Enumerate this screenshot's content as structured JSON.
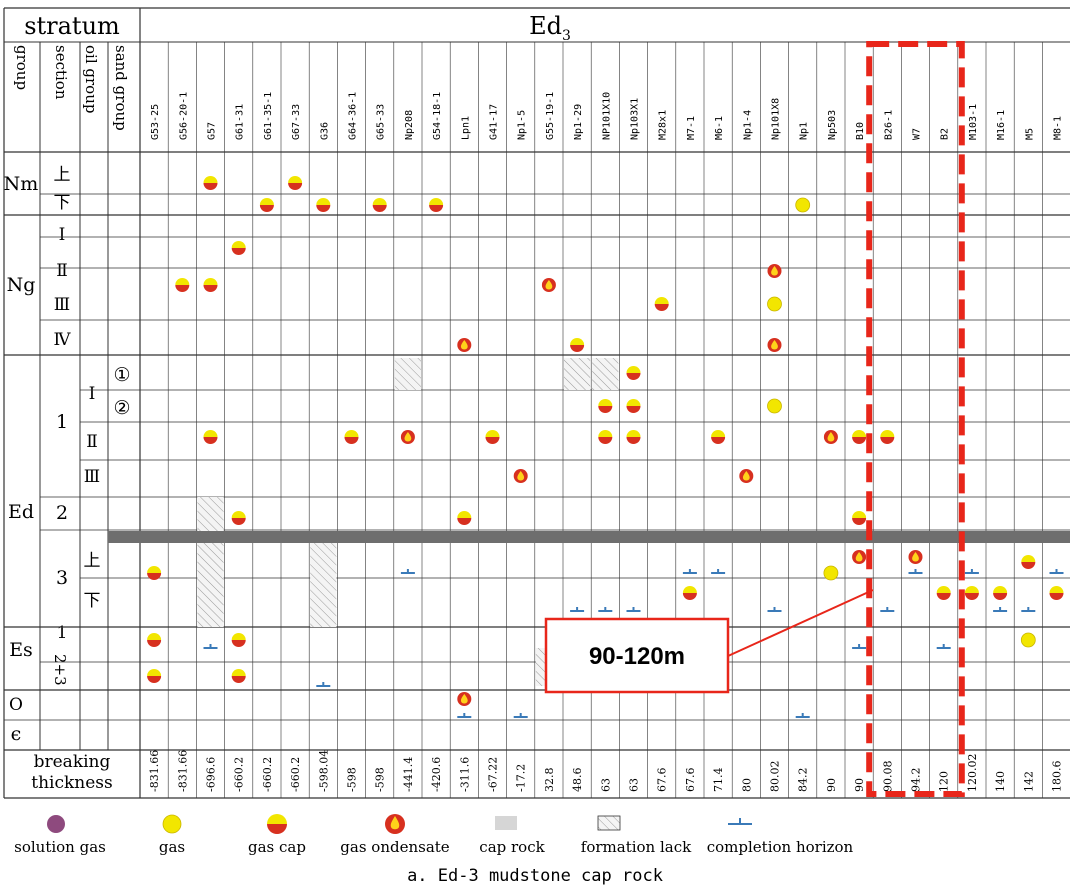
{
  "header": {
    "stratum_label": "stratum",
    "formation_label": "Ed",
    "formation_sub": "3",
    "group_label": "group",
    "section_label": "section",
    "oil_group_label": "oil group",
    "sand_group_label": "sand group"
  },
  "wells": [
    "G53-25",
    "G56-20-1",
    "G57",
    "G61-31",
    "G61-35-1",
    "G67-33",
    "G36",
    "G64-36-1",
    "G65-33",
    "Np208",
    "G54-18-1",
    "Lpn1",
    "G41-17",
    "Np1-5",
    "G55-19-1",
    "Np1-29",
    "NP101X10",
    "Np103X1",
    "M28x1",
    "M7-1",
    "M6-1",
    "Np1-4",
    "Np101X8",
    "Np1",
    "Np503",
    "B10",
    "B26-1",
    "W7",
    "B2",
    "M103-1",
    "M16-1",
    "M5",
    "M8-1"
  ],
  "thickness": [
    "-831.66",
    "-831.66",
    "-696.6",
    "-660.2",
    "-660.2",
    "-660.2",
    "-598.04",
    "-598",
    "-598",
    "-441.4",
    "-420.6",
    "-311.6",
    "-67.22",
    "-17.2",
    "32.8",
    "48.6",
    "63",
    "63",
    "67.6",
    "67.6",
    "71.4",
    "80",
    "80.02",
    "84.2",
    "90",
    "90",
    "90.08",
    "94.2",
    "120",
    "120.02",
    "140",
    "142",
    "180.6"
  ],
  "strat_rows": {
    "nm": "Nm",
    "nm_upper": "上",
    "nm_lower": "下",
    "ng": "Ng",
    "ng_1": "Ⅰ",
    "ng_2": "Ⅱ",
    "ng_3": "Ⅲ",
    "ng_4": "Ⅳ",
    "ed": "Ed",
    "ed_sec1": "1",
    "ed_sec2": "2",
    "ed_sec3": "3",
    "ed_og1": "Ⅰ",
    "ed_og2": "Ⅱ",
    "ed_og3": "Ⅲ",
    "sand1": "①",
    "sand2": "②",
    "ed3_upper": "上",
    "ed3_lower": "下",
    "es": "Es",
    "es_1": "1",
    "es_23": "2+3",
    "o": "O",
    "cambrian": "ϵ"
  },
  "footer_label_line1": "breaking",
  "footer_label_line2": "thickness",
  "callout": "90-120m",
  "legend": {
    "solution_gas": "solution gas",
    "gas": "gas",
    "gas_cap": "gas cap",
    "gas_condensate": "gas ondensate",
    "cap_rock": "cap rock",
    "formation_lack": "formation lack",
    "completion_horizon": "completion horizon"
  },
  "caption": "a. Ed-3 mudstone cap rock",
  "colors": {
    "gas_yellow": "#f2e600",
    "gas_cap_red": "#d7301f",
    "condensate_red": "#d7301f",
    "solution_gas_purple": "#8e4a7e",
    "cap_rock_gray": "#6e6e6e",
    "completion_blue": "#3a7ab8",
    "highlight_red": "#e8261a"
  },
  "symbols": [
    {
      "well": "G57",
      "row": "nm_upper",
      "type": "gascap"
    },
    {
      "well": "G67-33",
      "row": "nm_upper",
      "type": "gascap"
    },
    {
      "well": "G61-35-1",
      "row": "nm_lower",
      "type": "gascap"
    },
    {
      "well": "G36",
      "row": "nm_lower",
      "type": "gascap"
    },
    {
      "well": "G65-33",
      "row": "nm_lower",
      "type": "gascap"
    },
    {
      "well": "G54-18-1",
      "row": "nm_lower",
      "type": "gascap"
    },
    {
      "well": "Np1",
      "row": "nm_lower",
      "type": "gas"
    },
    {
      "well": "G61-31",
      "row": "ng_1b",
      "type": "gascap"
    },
    {
      "well": "G56-20-1",
      "row": "ng_2b",
      "type": "gascap"
    },
    {
      "well": "G57",
      "row": "ng_2b",
      "type": "gascap"
    },
    {
      "well": "G55-19-1",
      "row": "ng_2b",
      "type": "condensate"
    },
    {
      "well": "Np101X8",
      "row": "ng_2",
      "type": "condensate"
    },
    {
      "well": "Np101X8",
      "row": "ng_3",
      "type": "gas"
    },
    {
      "well": "M28x1",
      "row": "ng_3",
      "type": "gascap"
    },
    {
      "well": "Lpn1",
      "row": "ng_4",
      "type": "condensate"
    },
    {
      "well": "Np1-29",
      "row": "ng_4",
      "type": "gascap"
    },
    {
      "well": "Np101X8",
      "row": "ng_4",
      "type": "condensate"
    },
    {
      "well": "Np103X1",
      "row": "sand1",
      "type": "gascap"
    },
    {
      "well": "NP101X10",
      "row": "sand2",
      "type": "gascap"
    },
    {
      "well": "Np103X1",
      "row": "sand2",
      "type": "gascap"
    },
    {
      "well": "Np101X8",
      "row": "sand2",
      "type": "gas"
    },
    {
      "well": "G57",
      "row": "og2",
      "type": "gascap"
    },
    {
      "well": "G64-36-1",
      "row": "og2",
      "type": "gascap"
    },
    {
      "well": "Np208",
      "row": "og2",
      "type": "condensate"
    },
    {
      "well": "G41-17",
      "row": "og2",
      "type": "gascap"
    },
    {
      "well": "NP101X10",
      "row": "og2",
      "type": "gascap"
    },
    {
      "well": "Np103X1",
      "row": "og2",
      "type": "gascap"
    },
    {
      "well": "M6-1",
      "row": "og2",
      "type": "gascap"
    },
    {
      "well": "Np503",
      "row": "og2",
      "type": "condensate"
    },
    {
      "well": "B10",
      "row": "og2",
      "type": "gascap"
    },
    {
      "well": "B26-1",
      "row": "og2",
      "type": "gascap"
    },
    {
      "well": "Np1-5",
      "row": "og3",
      "type": "condensate"
    },
    {
      "well": "Np1-4",
      "row": "og3",
      "type": "condensate"
    },
    {
      "well": "G61-31",
      "row": "sec2",
      "type": "gascap"
    },
    {
      "well": "Lpn1",
      "row": "sec2",
      "type": "gascap"
    },
    {
      "well": "B10",
      "row": "sec2",
      "type": "gascap"
    },
    {
      "well": "B10",
      "row": "ed3u",
      "type": "condensate"
    },
    {
      "well": "W7",
      "row": "ed3u",
      "type": "condensate"
    },
    {
      "well": "G53-25",
      "row": "ed3m",
      "type": "gascap"
    },
    {
      "well": "Np503",
      "row": "ed3m",
      "type": "gas"
    },
    {
      "well": "M5",
      "row": "ed3u2",
      "type": "gascap"
    },
    {
      "well": "M7-1",
      "row": "ed3l",
      "type": "gascap"
    },
    {
      "well": "B2",
      "row": "ed3l",
      "type": "gascap"
    },
    {
      "well": "M103-1",
      "row": "ed3l",
      "type": "gascap"
    },
    {
      "well": "M16-1",
      "row": "ed3l",
      "type": "gascap"
    },
    {
      "well": "M8-1",
      "row": "ed3l",
      "type": "gascap"
    },
    {
      "well": "G53-25",
      "row": "es1",
      "type": "gascap"
    },
    {
      "well": "G61-31",
      "row": "es1",
      "type": "gascap"
    },
    {
      "well": "M5",
      "row": "es1",
      "type": "gas"
    },
    {
      "well": "G53-25",
      "row": "es23",
      "type": "gascap"
    },
    {
      "well": "G61-31",
      "row": "es23",
      "type": "gascap"
    },
    {
      "well": "Lpn1",
      "row": "o",
      "type": "condensate"
    }
  ],
  "completions": [
    {
      "well": "Np208",
      "row": "ed3m"
    },
    {
      "well": "M7-1",
      "row": "ed3m"
    },
    {
      "well": "M6-1",
      "row": "ed3m"
    },
    {
      "well": "W7",
      "row": "ed3m"
    },
    {
      "well": "M103-1",
      "row": "ed3m"
    },
    {
      "well": "M8-1",
      "row": "ed3m"
    },
    {
      "well": "Np1-29",
      "row": "ed3bot"
    },
    {
      "well": "NP101X10",
      "row": "ed3bot"
    },
    {
      "well": "Np103X1",
      "row": "ed3bot"
    },
    {
      "well": "Np101X8",
      "row": "ed3bot"
    },
    {
      "well": "B26-1",
      "row": "ed3bot"
    },
    {
      "well": "M16-1",
      "row": "ed3bot"
    },
    {
      "well": "M5",
      "row": "ed3bot"
    },
    {
      "well": "G57",
      "row": "es1bot"
    },
    {
      "well": "B10",
      "row": "es1bot"
    },
    {
      "well": "B2",
      "row": "es1bot"
    },
    {
      "well": "G36",
      "row": "es23bot"
    },
    {
      "well": "M6-1",
      "row": "es23bot"
    },
    {
      "well": "Lpn1",
      "row": "obot"
    },
    {
      "well": "Np1-5",
      "row": "obot"
    },
    {
      "well": "Np1",
      "row": "obot"
    }
  ],
  "formation_lack": [
    {
      "well": "Np208",
      "row": "sand1"
    },
    {
      "well": "Np1-29",
      "row": "sand1"
    },
    {
      "well": "NP101X10",
      "row": "sand1"
    },
    {
      "well": "G57",
      "row": "sec2"
    },
    {
      "well": "G57",
      "row": "ed3"
    },
    {
      "well": "G36",
      "row": "ed3"
    },
    {
      "well": "G55-19-1",
      "row": "es23"
    }
  ]
}
